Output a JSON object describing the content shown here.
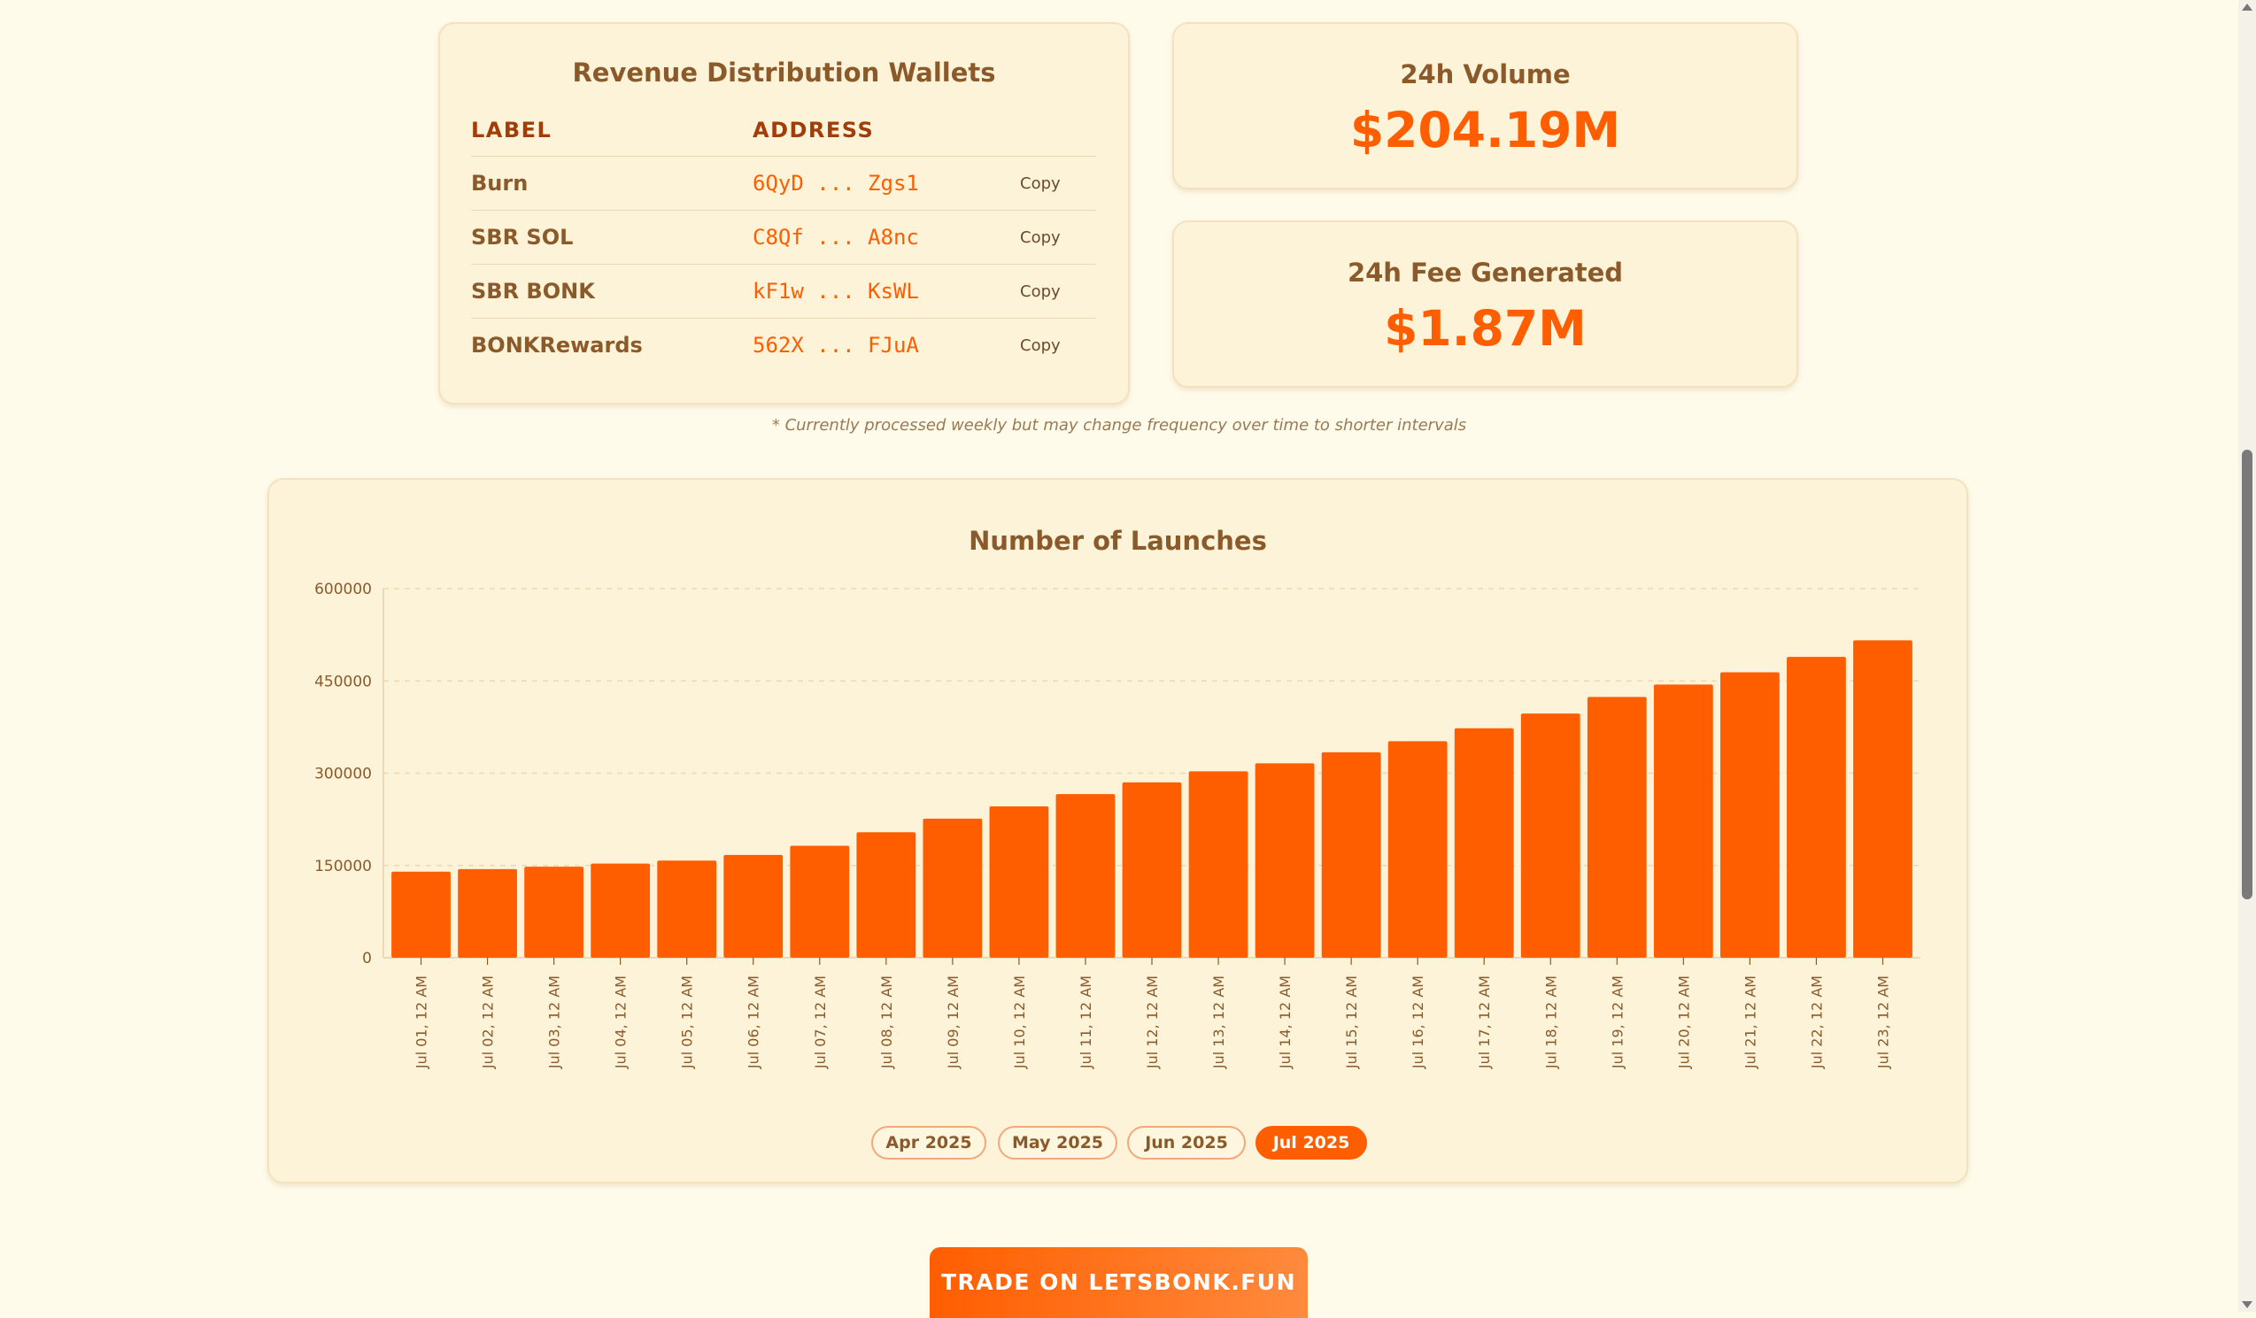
{
  "wallets": {
    "title": "Revenue Distribution Wallets",
    "col_label": "LABEL",
    "col_address": "ADDRESS",
    "rows": [
      {
        "label": "Burn",
        "address": "6QyD ... Zgs1",
        "copy": "Copy"
      },
      {
        "label": "SBR SOL",
        "address": "C8Qf ... A8nc",
        "copy": "Copy"
      },
      {
        "label": "SBR BONK",
        "address": "kF1w ... KsWL",
        "copy": "Copy"
      },
      {
        "label": "BONKRewards",
        "address": "562X ... FJuA",
        "copy": "Copy"
      }
    ]
  },
  "stats": {
    "volume_label": "24h Volume",
    "volume_value": "$204.19M",
    "fee_label": "24h Fee Generated",
    "fee_value": "$1.87M"
  },
  "footnote": "* Currently processed weekly but may change frequency over time to shorter intervals",
  "chart_data": {
    "type": "bar",
    "title": "Number of Launches",
    "xlabel": "",
    "ylabel": "",
    "ylim": [
      0,
      600000
    ],
    "yticks": [
      0,
      150000,
      300000,
      450000,
      600000
    ],
    "grid": true,
    "color": "#ff5e00",
    "categories": [
      "Jul 01, 12 AM",
      "Jul 02, 12 AM",
      "Jul 03, 12 AM",
      "Jul 04, 12 AM",
      "Jul 05, 12 AM",
      "Jul 06, 12 AM",
      "Jul 07, 12 AM",
      "Jul 08, 12 AM",
      "Jul 09, 12 AM",
      "Jul 10, 12 AM",
      "Jul 11, 12 AM",
      "Jul 12, 12 AM",
      "Jul 13, 12 AM",
      "Jul 14, 12 AM",
      "Jul 15, 12 AM",
      "Jul 16, 12 AM",
      "Jul 17, 12 AM",
      "Jul 18, 12 AM",
      "Jul 19, 12 AM",
      "Jul 20, 12 AM",
      "Jul 21, 12 AM",
      "Jul 22, 12 AM",
      "Jul 23, 12 AM"
    ],
    "values": [
      140000,
      144000,
      148000,
      153000,
      158000,
      167000,
      182000,
      204000,
      226000,
      246000,
      266000,
      285000,
      303000,
      316000,
      334000,
      352000,
      373000,
      397000,
      424000,
      444000,
      464000,
      489000,
      516000
    ]
  },
  "months": [
    {
      "label": "Apr 2025",
      "active": false
    },
    {
      "label": "May 2025",
      "active": false
    },
    {
      "label": "Jun 2025",
      "active": false
    },
    {
      "label": "Jul 2025",
      "active": true
    }
  ],
  "cta": "TRADE ON LETSBONK.FUN"
}
